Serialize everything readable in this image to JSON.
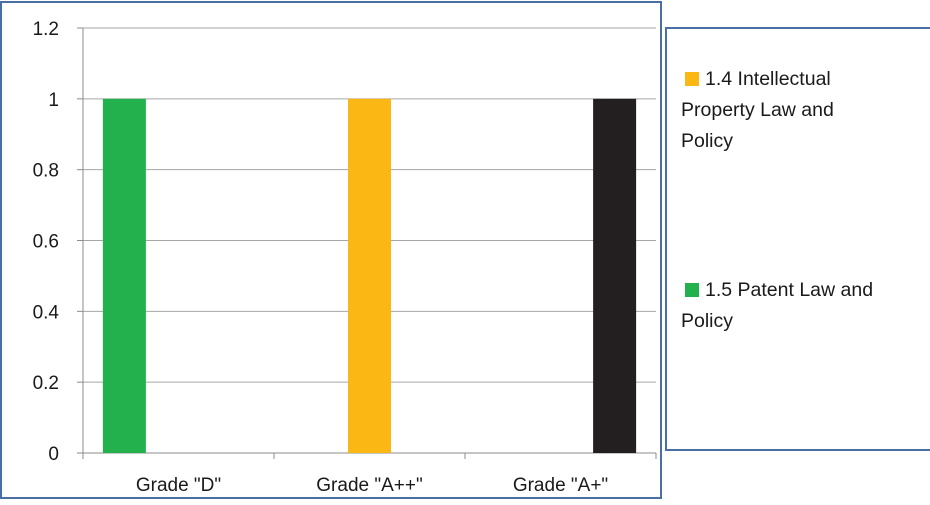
{
  "chart_data": {
    "type": "bar",
    "categories": [
      "Grade \"D\"",
      "Grade \"A++\"",
      "Grade \"A+\""
    ],
    "series": [
      {
        "name": "1.4 Intellectual Property Law and Policy",
        "legend_lines": [
          "1.4 Intellectual",
          "Property Law and",
          "Policy"
        ],
        "color": "#fbb713",
        "values": [
          0,
          1,
          0
        ]
      },
      {
        "name": "1.5 Patent Law and Policy",
        "legend_lines": [
          "1.5 Patent Law and",
          "Policy"
        ],
        "color": "#22b14c",
        "values": [
          1,
          0,
          0
        ]
      },
      {
        "name": "",
        "color": "#231f20",
        "values": [
          0,
          0,
          1
        ]
      }
    ],
    "y_ticks": [
      "0",
      "0.2",
      "0.4",
      "0.6",
      "0.8",
      "1",
      "1.2"
    ],
    "ylim": [
      0,
      1.2
    ],
    "grid": true,
    "legend_position": "right",
    "title": "",
    "xlabel": "",
    "ylabel": "",
    "frame_color": "#4a6fa5"
  }
}
